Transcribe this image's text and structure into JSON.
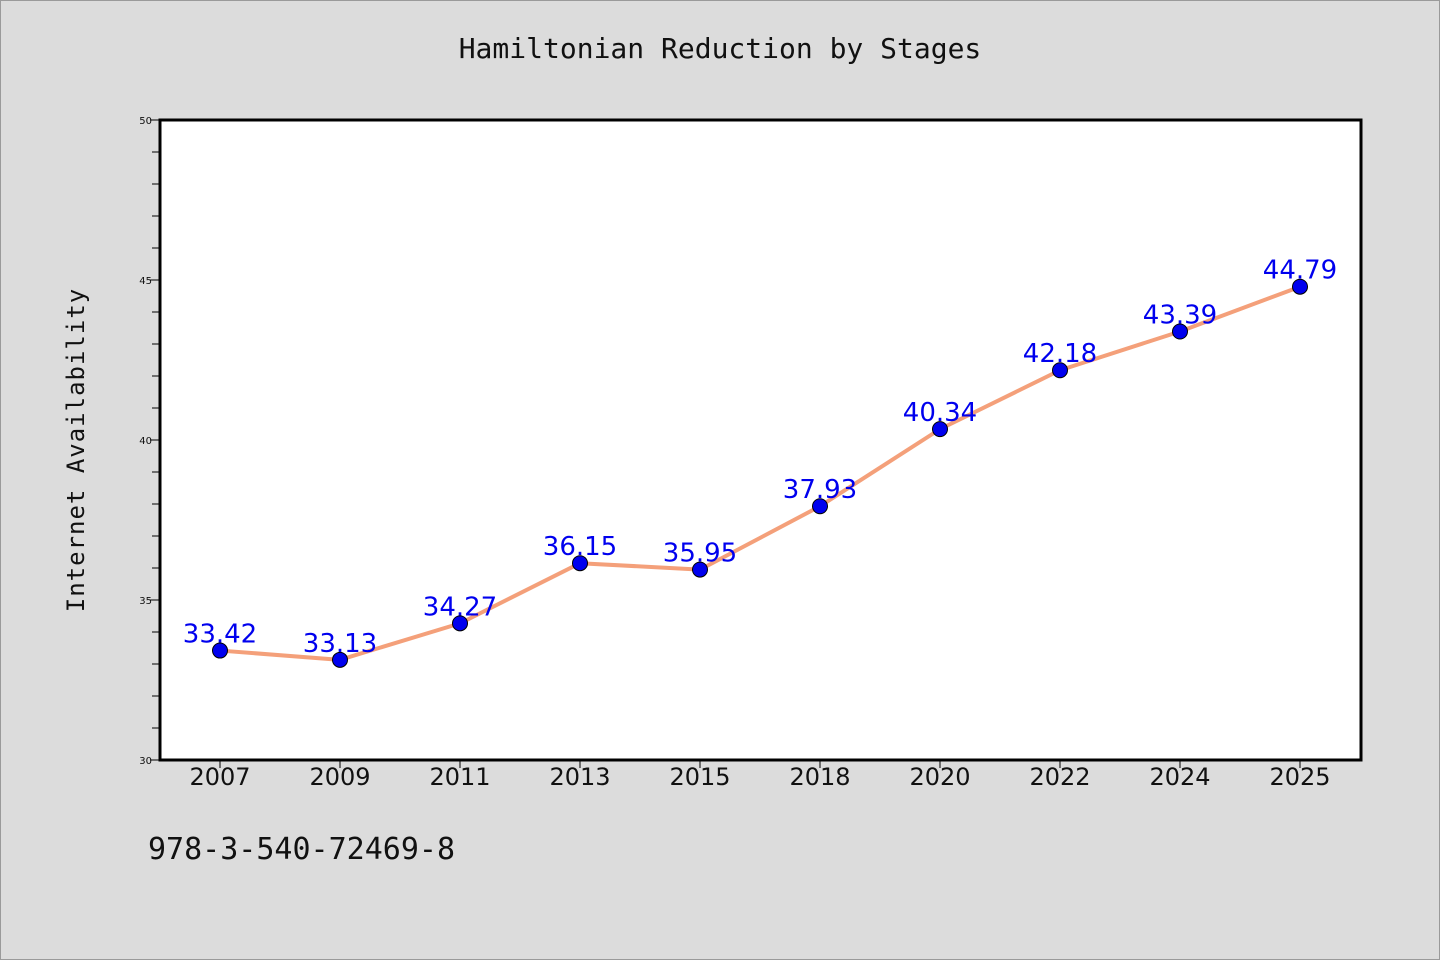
{
  "chart_data": {
    "type": "line",
    "title": "Hamiltonian Reduction by Stages",
    "xlabel": "",
    "ylabel": "Internet Availability",
    "categories": [
      "2007",
      "2009",
      "2011",
      "2013",
      "2015",
      "2018",
      "2020",
      "2022",
      "2024",
      "2025"
    ],
    "series": [
      {
        "values": [
          33.42,
          33.13,
          34.27,
          36.15,
          35.95,
          37.93,
          40.34,
          42.18,
          43.39,
          44.79
        ],
        "data_labels": [
          "33.42",
          "33.13",
          "34.27",
          "36.15",
          "35.95",
          "37.93",
          "40.34",
          "42.18",
          "43.39",
          "44.79"
        ],
        "line_color": "#f4a07a",
        "marker_color": "#0000ee"
      }
    ],
    "ylim": [
      30,
      50
    ],
    "yticks": [
      "30",
      "35",
      "40",
      "45",
      "50"
    ],
    "grid": false,
    "legend": "none"
  },
  "footer": {
    "code": "978-3-540-72469-8"
  },
  "colors": {
    "background": "#dcdcdc",
    "plot_background": "#ffffff",
    "axis": "#000000",
    "label_text": "#0000ee"
  }
}
